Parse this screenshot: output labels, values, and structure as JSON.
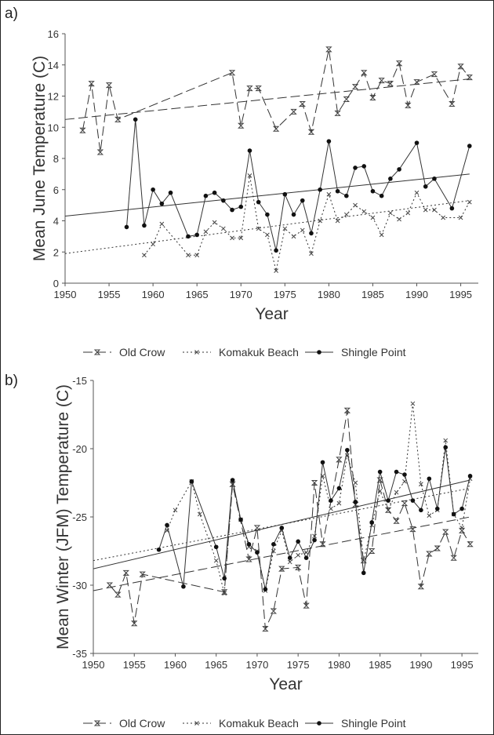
{
  "panel_a": {
    "letter": "a)",
    "chart_data": {
      "type": "line",
      "title": "",
      "xlabel": "Year",
      "ylabel": "Mean June Temperature (C)",
      "xlim": [
        1950,
        1997
      ],
      "ylim": [
        0,
        16
      ],
      "xticks": [
        1950,
        1955,
        1960,
        1965,
        1970,
        1975,
        1980,
        1985,
        1990,
        1995
      ],
      "yticks": [
        0,
        2,
        4,
        6,
        8,
        10,
        12,
        14,
        16
      ],
      "grid": false,
      "legend_position": "bottom",
      "series": [
        {
          "name": "Old Crow",
          "marker": "hourglass",
          "dash": "dashed",
          "points": [
            [
              1952,
              9.8
            ],
            [
              1953,
              12.8
            ],
            [
              1954,
              8.4
            ],
            [
              1955,
              12.7
            ],
            [
              1956,
              10.5
            ],
            [
              1969,
              13.5
            ],
            [
              1970,
              10.1
            ],
            [
              1971,
              12.5
            ],
            [
              1972,
              12.5
            ],
            [
              1974,
              9.9
            ],
            [
              1976,
              11.0
            ],
            [
              1977,
              11.5
            ],
            [
              1978,
              9.7
            ],
            [
              1980,
              15.0
            ],
            [
              1981,
              10.9
            ],
            [
              1982,
              11.8
            ],
            [
              1983,
              12.6
            ],
            [
              1984,
              13.5
            ],
            [
              1985,
              11.9
            ],
            [
              1986,
              13.0
            ],
            [
              1987,
              12.8
            ],
            [
              1988,
              14.1
            ],
            [
              1989,
              11.4
            ],
            [
              1990,
              12.9
            ],
            [
              1992,
              13.4
            ],
            [
              1994,
              11.5
            ],
            [
              1995,
              13.9
            ],
            [
              1996,
              13.2
            ]
          ],
          "trend": [
            [
              1950,
              10.5
            ],
            [
              1996,
              13.1
            ]
          ]
        },
        {
          "name": "Komakuk Beach",
          "marker": "x",
          "dash": "dotted",
          "points": [
            [
              1959,
              1.8
            ],
            [
              1960,
              2.5
            ],
            [
              1961,
              3.8
            ],
            [
              1964,
              1.8
            ],
            [
              1965,
              1.8
            ],
            [
              1966,
              3.3
            ],
            [
              1967,
              3.9
            ],
            [
              1968,
              3.5
            ],
            [
              1969,
              2.9
            ],
            [
              1970,
              2.9
            ],
            [
              1971,
              6.9
            ],
            [
              1972,
              3.5
            ],
            [
              1973,
              3.1
            ],
            [
              1974,
              0.8
            ],
            [
              1975,
              3.5
            ],
            [
              1976,
              3.0
            ],
            [
              1977,
              3.4
            ],
            [
              1978,
              1.9
            ],
            [
              1979,
              4.0
            ],
            [
              1980,
              5.7
            ],
            [
              1981,
              4.0
            ],
            [
              1982,
              4.4
            ],
            [
              1983,
              5.0
            ],
            [
              1984,
              4.6
            ],
            [
              1985,
              4.2
            ],
            [
              1986,
              3.1
            ],
            [
              1987,
              4.5
            ],
            [
              1988,
              4.1
            ],
            [
              1989,
              4.5
            ],
            [
              1990,
              5.8
            ],
            [
              1991,
              4.7
            ],
            [
              1992,
              4.7
            ],
            [
              1993,
              4.2
            ],
            [
              1995,
              4.2
            ],
            [
              1996,
              5.2
            ]
          ],
          "trend": [
            [
              1950,
              1.9
            ],
            [
              1996,
              5.3
            ]
          ]
        },
        {
          "name": "Shingle Point",
          "marker": "dot",
          "dash": "solid",
          "points": [
            [
              1957,
              3.6
            ],
            [
              1958,
              10.5
            ],
            [
              1959,
              3.7
            ],
            [
              1960,
              6.0
            ],
            [
              1961,
              5.1
            ],
            [
              1962,
              5.8
            ],
            [
              1964,
              3.0
            ],
            [
              1965,
              3.1
            ],
            [
              1966,
              5.6
            ],
            [
              1967,
              5.8
            ],
            [
              1968,
              5.3
            ],
            [
              1969,
              4.7
            ],
            [
              1970,
              4.9
            ],
            [
              1971,
              8.5
            ],
            [
              1972,
              5.2
            ],
            [
              1973,
              4.4
            ],
            [
              1974,
              2.1
            ],
            [
              1975,
              5.7
            ],
            [
              1976,
              4.4
            ],
            [
              1977,
              5.3
            ],
            [
              1978,
              3.2
            ],
            [
              1979,
              6.0
            ],
            [
              1980,
              9.1
            ],
            [
              1981,
              5.9
            ],
            [
              1982,
              5.6
            ],
            [
              1983,
              7.4
            ],
            [
              1984,
              7.5
            ],
            [
              1985,
              5.9
            ],
            [
              1986,
              5.6
            ],
            [
              1987,
              6.7
            ],
            [
              1988,
              7.3
            ],
            [
              1990,
              9.0
            ],
            [
              1991,
              6.2
            ],
            [
              1992,
              6.7
            ],
            [
              1994,
              4.8
            ],
            [
              1996,
              8.8
            ]
          ],
          "trend": [
            [
              1950,
              4.3
            ],
            [
              1996,
              7.0
            ]
          ]
        }
      ]
    }
  },
  "panel_b": {
    "letter": "b)",
    "chart_data": {
      "type": "line",
      "title": "",
      "xlabel": "Year",
      "ylabel": "Mean Winter (JFM) Temperature (C)",
      "xlim": [
        1950,
        1997
      ],
      "ylim": [
        -35,
        -15
      ],
      "xticks": [
        1950,
        1955,
        1960,
        1965,
        1970,
        1975,
        1980,
        1985,
        1990,
        1995
      ],
      "yticks": [
        -35,
        -30,
        -25,
        -20,
        -15
      ],
      "grid": false,
      "legend_position": "bottom",
      "series": [
        {
          "name": "Old Crow",
          "marker": "hourglass",
          "dash": "dashed",
          "points": [
            [
              1952,
              -30.0
            ],
            [
              1953,
              -30.7
            ],
            [
              1954,
              -29.1
            ],
            [
              1955,
              -32.8
            ],
            [
              1956,
              -29.2
            ],
            [
              1966,
              -30.5
            ],
            [
              1967,
              -22.6
            ],
            [
              1969,
              -28.1
            ],
            [
              1970,
              -25.8
            ],
            [
              1971,
              -33.2
            ],
            [
              1972,
              -31.9
            ],
            [
              1973,
              -28.8
            ],
            [
              1975,
              -28.7
            ],
            [
              1976,
              -31.5
            ],
            [
              1977,
              -22.5
            ],
            [
              1978,
              -27.0
            ],
            [
              1980,
              -20.8
            ],
            [
              1981,
              -17.2
            ],
            [
              1982,
              -24.1
            ],
            [
              1983,
              -28.2
            ],
            [
              1984,
              -27.5
            ],
            [
              1985,
              -22.3
            ],
            [
              1986,
              -24.5
            ],
            [
              1987,
              -25.3
            ],
            [
              1988,
              -24.0
            ],
            [
              1989,
              -25.9
            ],
            [
              1990,
              -30.1
            ],
            [
              1991,
              -27.7
            ],
            [
              1992,
              -27.3
            ],
            [
              1993,
              -26.1
            ],
            [
              1994,
              -28.0
            ],
            [
              1995,
              -26.0
            ],
            [
              1996,
              -27.0
            ]
          ],
          "trend": [
            [
              1950,
              -30.4
            ],
            [
              1996,
              -25.0
            ]
          ]
        },
        {
          "name": "Komakuk Beach",
          "marker": "x",
          "dash": "dotted",
          "points": [
            [
              1959,
              -26.0
            ],
            [
              1960,
              -24.5
            ],
            [
              1962,
              -22.4
            ],
            [
              1963,
              -24.8
            ],
            [
              1965,
              -28.2
            ],
            [
              1966,
              -30.6
            ],
            [
              1967,
              -22.4
            ],
            [
              1968,
              -25.2
            ],
            [
              1969,
              -27.2
            ],
            [
              1970,
              -27.5
            ],
            [
              1971,
              -30.4
            ],
            [
              1972,
              -27.5
            ],
            [
              1973,
              -26.0
            ],
            [
              1974,
              -28.3
            ],
            [
              1975,
              -27.8
            ],
            [
              1976,
              -27.6
            ],
            [
              1977,
              -26.4
            ],
            [
              1978,
              -22.0
            ],
            [
              1979,
              -24.4
            ],
            [
              1980,
              -24.0
            ],
            [
              1981,
              -20.5
            ],
            [
              1982,
              -22.5
            ],
            [
              1983,
              -28.2
            ],
            [
              1984,
              -25.6
            ],
            [
              1985,
              -23.1
            ],
            [
              1986,
              -24.5
            ],
            [
              1987,
              -23.2
            ],
            [
              1988,
              -22.4
            ],
            [
              1989,
              -16.7
            ],
            [
              1990,
              -22.6
            ],
            [
              1991,
              -24.9
            ],
            [
              1992,
              -24.5
            ],
            [
              1993,
              -19.4
            ],
            [
              1994,
              -24.8
            ],
            [
              1995,
              -25.8
            ],
            [
              1996,
              -22.2
            ]
          ],
          "trend": [
            [
              1950,
              -28.2
            ],
            [
              1996,
              -22.9
            ]
          ]
        },
        {
          "name": "Shingle Point",
          "marker": "dot",
          "dash": "solid",
          "points": [
            [
              1958,
              -27.4
            ],
            [
              1959,
              -25.6
            ],
            [
              1961,
              -30.1
            ],
            [
              1962,
              -22.4
            ],
            [
              1965,
              -27.2
            ],
            [
              1966,
              -29.5
            ],
            [
              1967,
              -22.3
            ],
            [
              1968,
              -25.2
            ],
            [
              1969,
              -27.0
            ],
            [
              1970,
              -27.6
            ],
            [
              1971,
              -30.3
            ],
            [
              1972,
              -27.0
            ],
            [
              1973,
              -25.8
            ],
            [
              1974,
              -28.0
            ],
            [
              1975,
              -26.8
            ],
            [
              1976,
              -28.0
            ],
            [
              1977,
              -26.7
            ],
            [
              1978,
              -21.0
            ],
            [
              1979,
              -23.8
            ],
            [
              1980,
              -22.9
            ],
            [
              1981,
              -20.1
            ],
            [
              1982,
              -23.9
            ],
            [
              1983,
              -29.1
            ],
            [
              1984,
              -25.4
            ],
            [
              1985,
              -21.7
            ],
            [
              1986,
              -23.8
            ],
            [
              1987,
              -21.7
            ],
            [
              1988,
              -21.9
            ],
            [
              1989,
              -23.8
            ],
            [
              1990,
              -24.5
            ],
            [
              1991,
              -22.2
            ],
            [
              1992,
              -24.4
            ],
            [
              1993,
              -19.9
            ],
            [
              1994,
              -24.8
            ],
            [
              1995,
              -24.4
            ],
            [
              1996,
              -22.0
            ]
          ],
          "trend": [
            [
              1950,
              -28.8
            ],
            [
              1996,
              -22.3
            ]
          ]
        }
      ]
    }
  }
}
